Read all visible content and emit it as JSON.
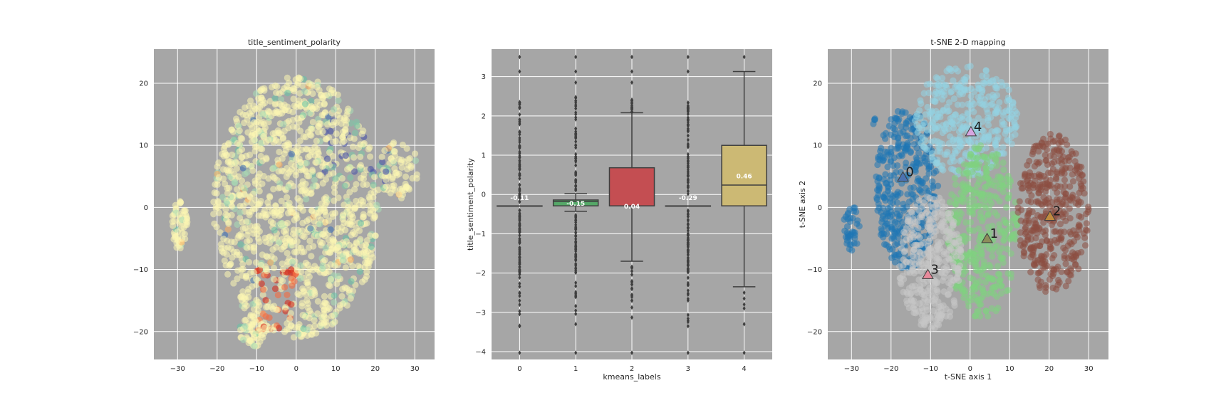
{
  "chart_data": [
    {
      "type": "scatter",
      "title": "title_sentiment_polarity",
      "xlabel": "",
      "ylabel": "",
      "xlim": [
        -36,
        35
      ],
      "ylim": [
        -24.5,
        25.5
      ],
      "xticks": [
        -30,
        -20,
        -10,
        0,
        10,
        20,
        30
      ],
      "yticks": [
        -20,
        -10,
        0,
        10,
        20
      ],
      "grid": true,
      "colormap": "Spectral",
      "background": "#a6a6a6"
    },
    {
      "type": "box",
      "title": "",
      "xlabel": "kmeans_labels",
      "ylabel": "title_sentiment_polarity",
      "xlim": [
        -0.5,
        4.5
      ],
      "ylim": [
        -4.2,
        3.7
      ],
      "yticks": [
        -4,
        -3,
        -2,
        -1,
        0,
        1,
        2,
        3
      ],
      "grid": true,
      "background": "#a6a6a6",
      "categories": [
        "0",
        "1",
        "2",
        "3",
        "4"
      ],
      "boxes": [
        {
          "label": "0",
          "q1": -0.29,
          "median": -0.29,
          "q3": -0.29,
          "whisker_low": -0.29,
          "whisker_high": -0.29,
          "mean_label": "-0.11",
          "color": "#4c72b0"
        },
        {
          "label": "1",
          "q1": -0.29,
          "median": -0.18,
          "q3": -0.14,
          "whisker_low": -0.43,
          "whisker_high": 0.02,
          "mean_label": "-0.15",
          "color": "#55a868"
        },
        {
          "label": "2",
          "q1": -0.29,
          "median": -0.29,
          "q3": 0.68,
          "whisker_low": -1.7,
          "whisker_high": 2.08,
          "mean_label": "0.04",
          "color": "#c44e52"
        },
        {
          "label": "3",
          "q1": -0.29,
          "median": -0.29,
          "q3": -0.29,
          "whisker_low": -0.29,
          "whisker_high": -0.29,
          "mean_label": "-0.29",
          "color": "#8172b2"
        },
        {
          "label": "4",
          "q1": -0.29,
          "median": 0.24,
          "q3": 1.25,
          "whisker_low": -2.35,
          "whisker_high": 3.13,
          "mean_label": "0.46",
          "color": "#ccb974"
        }
      ]
    },
    {
      "type": "scatter",
      "title": "t-SNE 2-D mapping",
      "xlabel": "t-SNE axis 1",
      "ylabel": "t-SNE axis 2",
      "xlim": [
        -36,
        35
      ],
      "ylim": [
        -24.5,
        25.5
      ],
      "xticks": [
        -30,
        -20,
        -10,
        0,
        10,
        20,
        30
      ],
      "yticks": [
        -20,
        -10,
        0,
        10,
        20
      ],
      "grid": true,
      "background": "#a6a6a6",
      "clusters": [
        {
          "label": "0",
          "centroid": [
            -17,
            4.8
          ],
          "color": "#1f77b4"
        },
        {
          "label": "1",
          "centroid": [
            4.3,
            -5.1
          ],
          "color": "#7fd17f"
        },
        {
          "label": "2",
          "centroid": [
            20.2,
            -1.5
          ],
          "color": "#8c4f42"
        },
        {
          "label": "3",
          "centroid": [
            -10.7,
            -10.9
          ],
          "color": "#c7c7c7"
        },
        {
          "label": "4",
          "centroid": [
            0.2,
            12.1
          ],
          "color": "#93d1e2"
        }
      ]
    }
  ]
}
